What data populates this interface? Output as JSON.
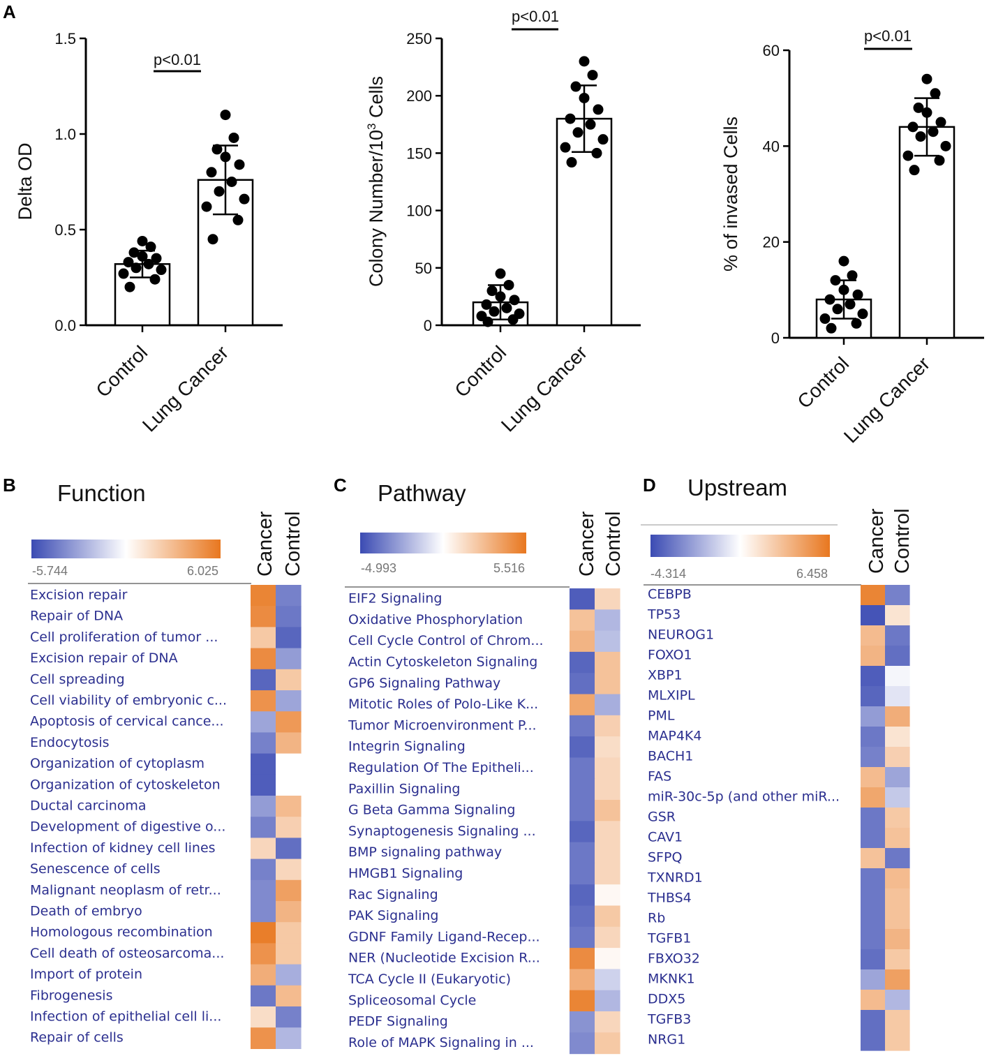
{
  "figure_labels": {
    "a": "A",
    "b": "B",
    "c": "C",
    "d": "D"
  },
  "colors": {
    "low": "#3b4bb3",
    "mid": "#ffffff",
    "high": "#e8771f",
    "bar_fill": "#ffffff",
    "dot": "#000000"
  },
  "chart_data": [
    {
      "type": "bar",
      "panel": "A",
      "title": "",
      "categories": [
        "Control",
        "Lung Cancer"
      ],
      "ylabel": "Delta OD",
      "ylim": [
        0,
        1.5
      ],
      "yticks": [
        "0.0",
        "0.5",
        "1.0",
        "1.5"
      ],
      "means": [
        0.32,
        0.76
      ],
      "sd": [
        0.07,
        0.18
      ],
      "points": [
        [
          0.2,
          0.24,
          0.27,
          0.29,
          0.3,
          0.32,
          0.33,
          0.35,
          0.36,
          0.38,
          0.41,
          0.44
        ],
        [
          0.45,
          0.55,
          0.62,
          0.66,
          0.7,
          0.75,
          0.8,
          0.84,
          0.88,
          0.92,
          0.98,
          1.1
        ]
      ],
      "significance": "p<0.01"
    },
    {
      "type": "bar",
      "panel": "A",
      "title": "",
      "categories": [
        "Control",
        "Lung Cancer"
      ],
      "ylabel_main": "Colony Number/10",
      "ylabel_sup": "3",
      "ylabel_tail": " Cells",
      "ylim": [
        0,
        250
      ],
      "yticks": [
        "0",
        "50",
        "100",
        "150",
        "200",
        "250"
      ],
      "means": [
        20,
        180
      ],
      "sd": [
        15,
        29
      ],
      "points": [
        [
          3,
          5,
          8,
          10,
          12,
          15,
          18,
          22,
          25,
          30,
          35,
          45
        ],
        [
          142,
          150,
          155,
          162,
          168,
          175,
          180,
          188,
          198,
          208,
          218,
          230
        ]
      ],
      "significance": "p<0.01"
    },
    {
      "type": "bar",
      "panel": "A",
      "title": "",
      "categories": [
        "Control",
        "Lung Cancer"
      ],
      "ylabel": "% of invased Cells",
      "ylim": [
        0,
        60
      ],
      "yticks": [
        "0",
        "20",
        "40",
        "60"
      ],
      "means": [
        8,
        44
      ],
      "sd": [
        4,
        6
      ],
      "points": [
        [
          2,
          3,
          4,
          5,
          6,
          7,
          8,
          9,
          10,
          12,
          13,
          16
        ],
        [
          35,
          37,
          38,
          40,
          42,
          43,
          44,
          45,
          47,
          48,
          51,
          54
        ]
      ],
      "significance": "p<0.01"
    },
    {
      "type": "heatmap",
      "panel": "B",
      "title": "Function",
      "scale_min": "-5.744",
      "scale_max": "6.025",
      "columns": [
        "Cancer",
        "Control"
      ],
      "rows": [
        "Excision repair",
        "Repair of DNA",
        "Cell proliferation of tumor ...",
        "Excision repair of DNA",
        "Cell spreading",
        "Cell viability of embryonic c...",
        "Apoptosis of cervical cance...",
        "Endocytosis",
        "Organization of cytoplasm",
        "Organization of cytoskeleton",
        "Ductal carcinoma",
        "Development of digestive o...",
        "Infection of kidney cell lines",
        "Senescence of cells",
        "Malignant neoplasm of retr...",
        "Death of embryo",
        "Homologous recombination",
        "Cell death of osteosarcoma...",
        "Import of protein",
        "Fibrogenesis",
        "Infection of epithelial cell li...",
        "Repair of cells"
      ],
      "values": [
        [
          0.9,
          -0.7
        ],
        [
          0.85,
          -0.75
        ],
        [
          0.4,
          -0.85
        ],
        [
          0.85,
          -0.55
        ],
        [
          -0.85,
          0.4
        ],
        [
          0.8,
          -0.5
        ],
        [
          -0.5,
          0.75
        ],
        [
          -0.7,
          0.55
        ],
        [
          -0.9,
          0.0
        ],
        [
          -0.9,
          0.0
        ],
        [
          -0.55,
          0.5
        ],
        [
          -0.7,
          0.35
        ],
        [
          0.3,
          -0.8
        ],
        [
          -0.7,
          0.3
        ],
        [
          -0.65,
          0.7
        ],
        [
          -0.65,
          0.55
        ],
        [
          0.95,
          0.4
        ],
        [
          0.8,
          0.4
        ],
        [
          0.6,
          -0.45
        ],
        [
          -0.75,
          0.5
        ],
        [
          0.25,
          -0.7
        ],
        [
          0.8,
          -0.4
        ]
      ]
    },
    {
      "type": "heatmap",
      "panel": "C",
      "title": "Pathway",
      "scale_min": "-4.993",
      "scale_max": "5.516",
      "columns": [
        "Cancer",
        "Control"
      ],
      "rows": [
        "EIF2 Signaling",
        "Oxidative Phosphorylation",
        "Cell Cycle Control of Chrom...",
        "Actin Cytoskeleton Signaling",
        "GP6 Signaling Pathway",
        "Mitotic Roles of Polo-Like K...",
        "Tumor Microenvironment P...",
        "Integrin Signaling",
        "Regulation Of The Epitheli...",
        "Paxillin Signaling",
        "G Beta Gamma Signaling",
        "Synaptogenesis Signaling ...",
        "BMP signaling pathway",
        "HMGB1 Signaling",
        "Rac Signaling",
        "PAK Signaling",
        "GDNF Family Ligand-Recep...",
        "NER (Nucleotide Excision R...",
        "TCA Cycle II (Eukaryotic)",
        "Spliceosomal Cycle",
        "PEDF Signaling",
        "Role of MAPK Signaling in ..."
      ],
      "values": [
        [
          -0.9,
          0.3
        ],
        [
          0.45,
          -0.4
        ],
        [
          0.55,
          -0.35
        ],
        [
          -0.85,
          0.45
        ],
        [
          -0.8,
          0.45
        ],
        [
          0.65,
          -0.45
        ],
        [
          -0.75,
          0.35
        ],
        [
          -0.85,
          0.25
        ],
        [
          -0.75,
          0.3
        ],
        [
          -0.75,
          0.3
        ],
        [
          -0.75,
          0.45
        ],
        [
          -0.85,
          0.3
        ],
        [
          -0.75,
          0.3
        ],
        [
          -0.75,
          0.3
        ],
        [
          -0.85,
          0.05
        ],
        [
          -0.8,
          0.4
        ],
        [
          -0.75,
          0.3
        ],
        [
          0.85,
          0.05
        ],
        [
          0.6,
          -0.25
        ],
        [
          0.9,
          -0.4
        ],
        [
          -0.6,
          0.3
        ],
        [
          -0.65,
          0.4
        ]
      ]
    },
    {
      "type": "heatmap",
      "panel": "D",
      "title": "Upstream",
      "scale_min": "-4.314",
      "scale_max": "6.458",
      "columns": [
        "Cancer",
        "Control"
      ],
      "rows": [
        "CEBPB",
        "TP53",
        "NEUROG1",
        "FOXO1",
        "XBP1",
        "MLXIPL",
        "PML",
        "MAP4K4",
        "BACH1",
        "FAS",
        "miR-30c-5p (and other miR...",
        "GSR",
        "CAV1",
        "SFPQ",
        "TXNRD1",
        "THBS4",
        "Rb",
        "TGFB1",
        "FBXO32",
        "MKNK1",
        "DDX5",
        "TGFB3",
        "NRG1"
      ],
      "values": [
        [
          0.9,
          -0.7
        ],
        [
          -0.95,
          0.2
        ],
        [
          0.5,
          -0.75
        ],
        [
          0.55,
          -0.8
        ],
        [
          -0.9,
          -0.05
        ],
        [
          -0.85,
          -0.15
        ],
        [
          -0.55,
          0.6
        ],
        [
          -0.75,
          0.2
        ],
        [
          -0.7,
          0.35
        ],
        [
          0.5,
          -0.5
        ],
        [
          0.65,
          -0.3
        ],
        [
          -0.75,
          0.4
        ],
        [
          -0.75,
          0.45
        ],
        [
          0.45,
          -0.75
        ],
        [
          -0.75,
          0.5
        ],
        [
          -0.75,
          0.45
        ],
        [
          -0.75,
          0.45
        ],
        [
          -0.75,
          0.55
        ],
        [
          -0.8,
          0.4
        ],
        [
          -0.5,
          0.7
        ],
        [
          0.5,
          -0.4
        ],
        [
          -0.8,
          0.4
        ],
        [
          -0.8,
          0.4
        ]
      ]
    }
  ]
}
